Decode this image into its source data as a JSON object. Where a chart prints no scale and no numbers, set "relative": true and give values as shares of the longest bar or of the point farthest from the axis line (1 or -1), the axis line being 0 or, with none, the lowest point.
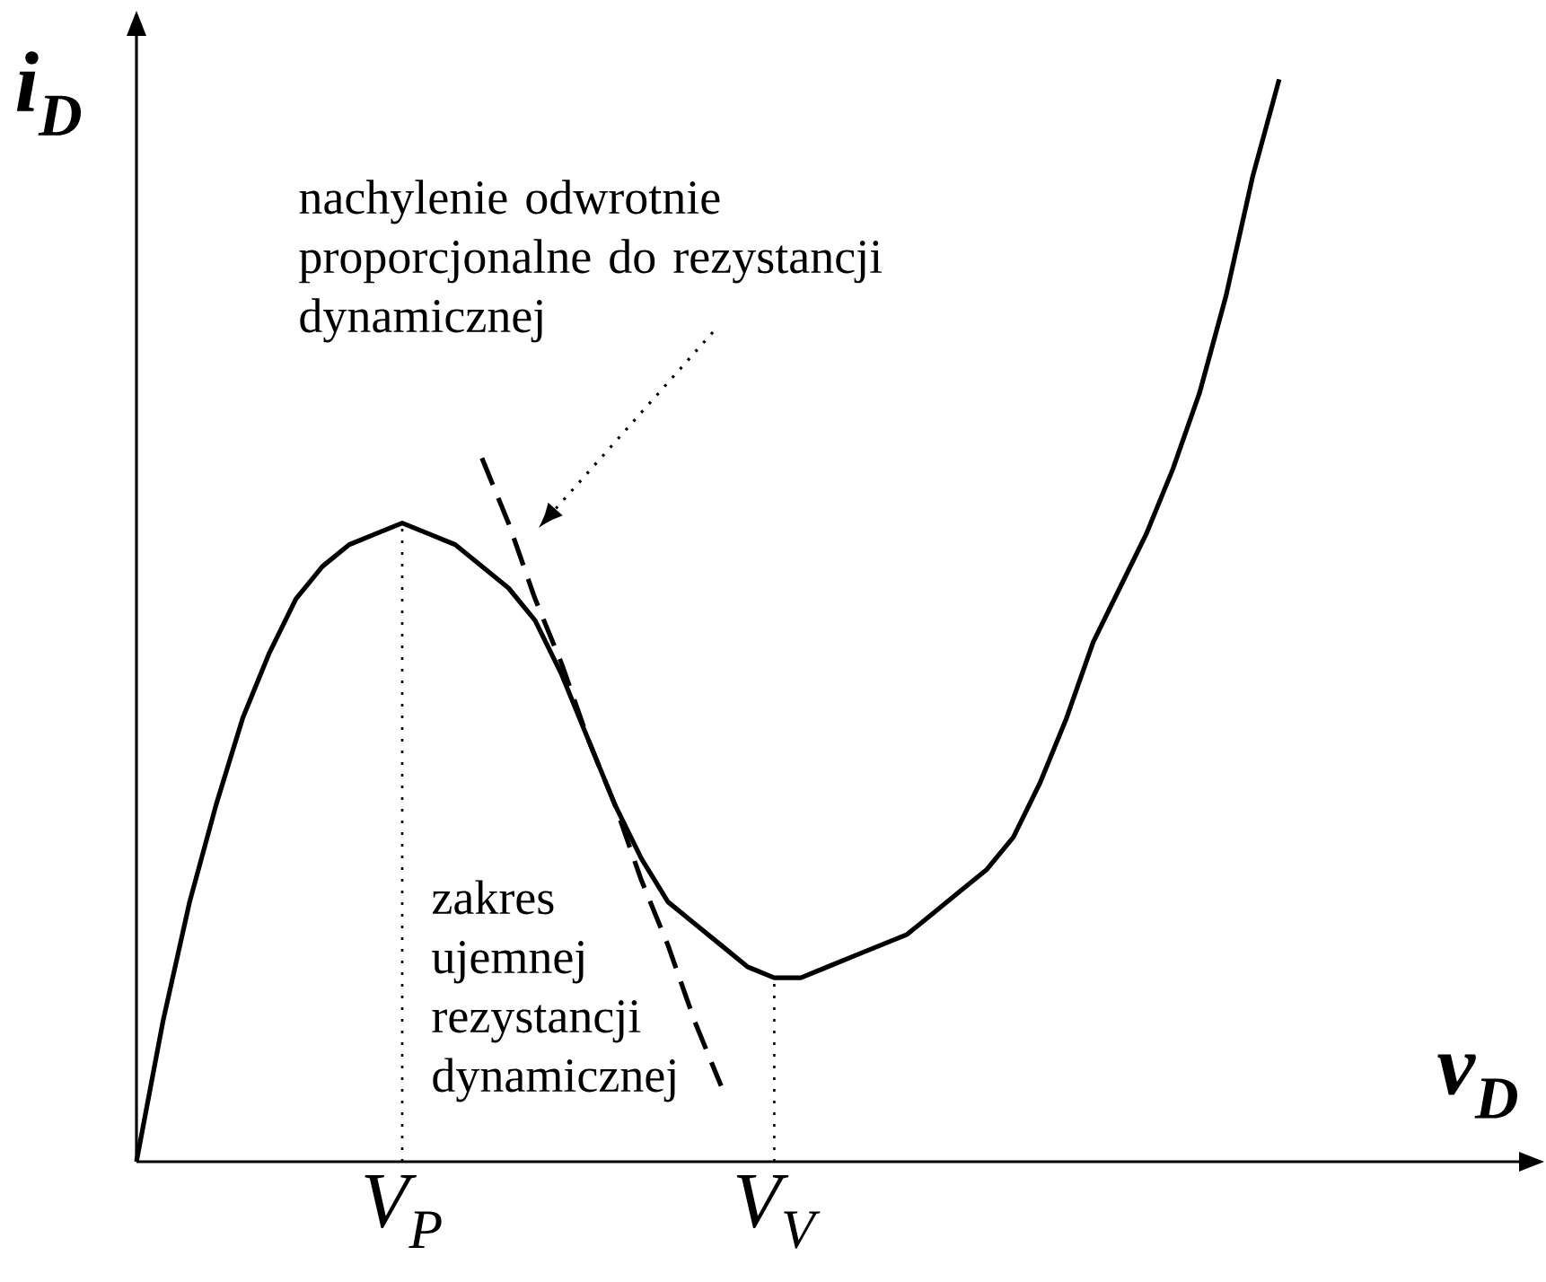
{
  "chart_data": {
    "type": "line",
    "relative": true,
    "xlabel": "v$_{D}$",
    "ylabel": "i$_{D}$",
    "categories": [
      null,
      null,
      null,
      null,
      null,
      null,
      null,
      null,
      null,
      null,
      "V$_{P}$",
      null,
      null,
      null,
      null,
      null,
      null,
      null,
      null,
      null,
      null,
      null,
      null,
      null,
      "V$_{V}$",
      null,
      null,
      null,
      null,
      null,
      null,
      null,
      null,
      null,
      null,
      null,
      null,
      null,
      null,
      null,
      null,
      null,
      null,
      null
    ],
    "series": [
      {
        "color": "#000000",
        "line_style": "solid",
        "values": [
          0,
          0.13,
          0.24,
          0.33,
          0.41,
          0.47,
          0.52,
          0.55,
          0.57,
          0.58,
          0.59,
          0.58,
          0.57,
          0.55,
          0.53,
          0.5,
          0.45,
          0.39,
          0.33,
          0.28,
          0.24,
          0.22,
          0.2,
          0.18,
          0.17,
          0.17,
          0.18,
          0.19,
          0.2,
          0.21,
          0.23,
          0.25,
          0.27,
          0.3,
          0.35,
          0.41,
          0.48,
          0.53,
          0.58,
          0.64,
          0.71,
          0.8,
          0.91,
          1.0
        ]
      },
      {
        "color": "#000000",
        "line_style": "dashed",
        "values": [
          null,
          null,
          null,
          null,
          null,
          null,
          null,
          null,
          null,
          null,
          null,
          null,
          null,
          0.65,
          0.59,
          0.52,
          0.46,
          0.39,
          0.33,
          0.26,
          0.2,
          0.13,
          0.07,
          null,
          null,
          null,
          null,
          null,
          null,
          null,
          null,
          null,
          null,
          null,
          null,
          null,
          null,
          null,
          null,
          null,
          null,
          null,
          null,
          null
        ]
      }
    ],
    "ref_lines": [
      {
        "axis": "x",
        "value": "V$_{P}$",
        "line_style": "dotted"
      },
      {
        "axis": "x",
        "value": "V$_{V}$",
        "line_style": "dotted"
      }
    ],
    "annotations": [
      "nachylenie odwrotnie proporcjonalne do rezystancji dynamicznej",
      "zakres ujemnej rezystancji dynamicznej"
    ]
  }
}
